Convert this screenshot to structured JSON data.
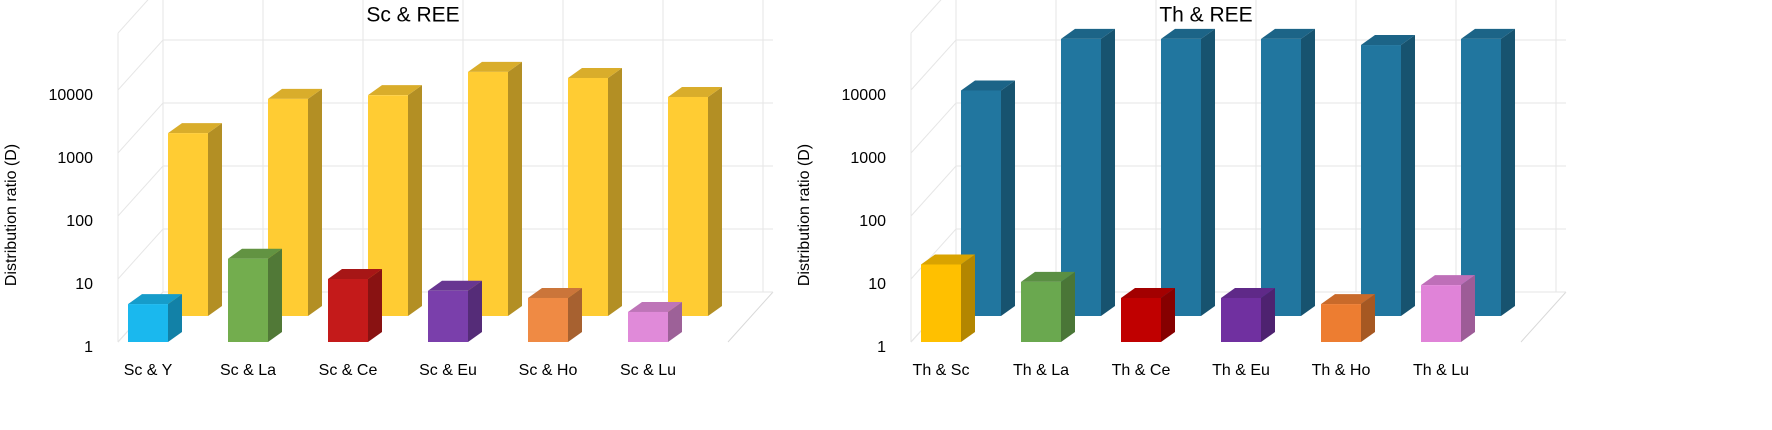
{
  "chart_data": [
    {
      "type": "bar3d",
      "title": "Sc & REE",
      "ylabel": "Distribution ratio (D)",
      "categories": [
        "Sc & Y",
        "Sc & La",
        "Sc & Ce",
        "Sc & Eu",
        "Sc & Ho",
        "Sc & Lu"
      ],
      "log_scale": true,
      "ylim": [
        1,
        80000
      ],
      "yticks": [
        1,
        10,
        100,
        1000,
        10000
      ],
      "grid": true,
      "series": [
        {
          "colors": [
            "#1ab8ee",
            "#73ad4e",
            "#c41a1a",
            "#7a3fab",
            "#ef8a44",
            "#e08ad9"
          ],
          "values": [
            4,
            21,
            10,
            6.5,
            5,
            3
          ]
        },
        {
          "color": "#ffcc33",
          "values": [
            800,
            2800,
            3200,
            7500,
            6000,
            3000
          ]
        }
      ]
    },
    {
      "type": "bar3d",
      "title": "Th & REE",
      "ylabel": "Distribution ratio (D)",
      "categories": [
        "Th & Sc",
        "Th & La",
        "Th & Ce",
        "Th & Eu",
        "Th & Ho",
        "Th & Lu"
      ],
      "log_scale": true,
      "ylim": [
        1,
        80000
      ],
      "yticks": [
        1,
        10,
        100,
        1000,
        10000
      ],
      "grid": true,
      "series": [
        {
          "colors": [
            "#ffc000",
            "#6aa84f",
            "#c00000",
            "#7030a0",
            "#ed7d31",
            "#e083d8"
          ],
          "values": [
            17,
            9,
            5,
            5,
            4,
            8
          ]
        },
        {
          "color": "#21769f",
          "values": [
            3800,
            25000,
            25000,
            25000,
            20000,
            25000
          ]
        }
      ]
    }
  ]
}
